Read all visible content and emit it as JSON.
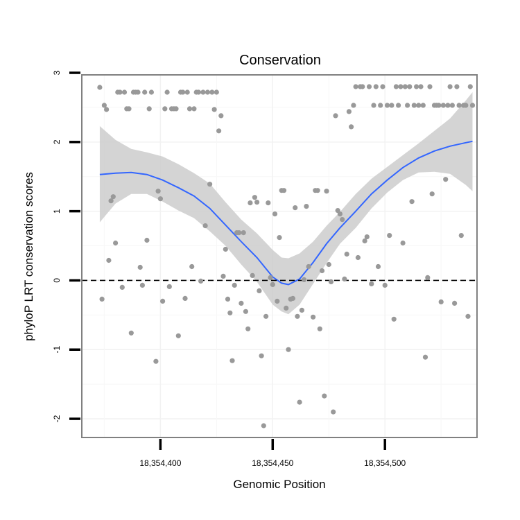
{
  "chart_data": {
    "type": "scatter",
    "title": "Conservation",
    "xlabel": "Genomic Position",
    "ylabel": "phyloP LRT conservation scores",
    "xlim": [
      18354365,
      18354541
    ],
    "ylim": [
      -2.27,
      2.97
    ],
    "x_ticks": [
      18354400,
      18354450,
      18354500
    ],
    "x_tick_labels": [
      "18,354,400",
      "18,354,450",
      "18,354,500"
    ],
    "y_ticks": [
      -2,
      -1,
      0,
      1,
      2,
      3
    ],
    "y_tick_labels": [
      "-2",
      "-1",
      "0",
      "1",
      "2",
      "3"
    ],
    "reference_line": {
      "y": 0,
      "style": "dashed"
    },
    "colors": {
      "points": "#999999",
      "smooth": "#3366ff",
      "ribbon": "#cccccc",
      "panel_border": "#808080",
      "grid": "#f2f2f2"
    },
    "points": [
      [
        18354373,
        2.79
      ],
      [
        18354374,
        -0.27
      ],
      [
        18354375,
        2.53
      ],
      [
        18354376,
        2.47
      ],
      [
        18354377,
        0.29
      ],
      [
        18354378,
        1.15
      ],
      [
        18354379,
        1.21
      ],
      [
        18354380,
        0.54
      ],
      [
        18354381,
        2.72
      ],
      [
        18354382,
        2.72
      ],
      [
        18354383,
        -0.1
      ],
      [
        18354384,
        2.72
      ],
      [
        18354385,
        2.48
      ],
      [
        18354386,
        2.48
      ],
      [
        18354387,
        -0.76
      ],
      [
        18354388,
        2.72
      ],
      [
        18354389,
        2.72
      ],
      [
        18354390,
        2.72
      ],
      [
        18354391,
        0.19
      ],
      [
        18354392,
        -0.07
      ],
      [
        18354393,
        2.72
      ],
      [
        18354394,
        0.58
      ],
      [
        18354395,
        2.48
      ],
      [
        18354396,
        2.72
      ],
      [
        18354398,
        -1.17
      ],
      [
        18354399,
        1.29
      ],
      [
        18354400,
        1.18
      ],
      [
        18354401,
        -0.3
      ],
      [
        18354402,
        2.48
      ],
      [
        18354403,
        2.72
      ],
      [
        18354404,
        -0.09
      ],
      [
        18354405,
        2.48
      ],
      [
        18354406,
        2.48
      ],
      [
        18354407,
        2.48
      ],
      [
        18354408,
        -0.8
      ],
      [
        18354409,
        2.72
      ],
      [
        18354410,
        2.72
      ],
      [
        18354411,
        -0.26
      ],
      [
        18354412,
        2.72
      ],
      [
        18354413,
        2.48
      ],
      [
        18354414,
        0.2
      ],
      [
        18354415,
        2.48
      ],
      [
        18354416,
        2.72
      ],
      [
        18354417,
        2.72
      ],
      [
        18354418,
        -0.01
      ],
      [
        18354419,
        2.72
      ],
      [
        18354420,
        0.79
      ],
      [
        18354421,
        2.72
      ],
      [
        18354422,
        1.39
      ],
      [
        18354423,
        2.72
      ],
      [
        18354424,
        2.47
      ],
      [
        18354425,
        2.72
      ],
      [
        18354426,
        2.16
      ],
      [
        18354427,
        2.38
      ],
      [
        18354428,
        0.06
      ],
      [
        18354429,
        0.45
      ],
      [
        18354430,
        -0.27
      ],
      [
        18354431,
        -0.47
      ],
      [
        18354432,
        -1.16
      ],
      [
        18354433,
        -0.07
      ],
      [
        18354434,
        0.69
      ],
      [
        18354435,
        0.69
      ],
      [
        18354436,
        -0.33
      ],
      [
        18354437,
        0.69
      ],
      [
        18354438,
        -0.45
      ],
      [
        18354439,
        -0.7
      ],
      [
        18354440,
        1.12
      ],
      [
        18354441,
        0.07
      ],
      [
        18354442,
        1.2
      ],
      [
        18354443,
        1.13
      ],
      [
        18354444,
        -0.15
      ],
      [
        18354445,
        -1.09
      ],
      [
        18354446,
        -2.1
      ],
      [
        18354447,
        -0.52
      ],
      [
        18354448,
        1.12
      ],
      [
        18354449,
        0.04
      ],
      [
        18354450,
        -0.06
      ],
      [
        18354451,
        0.96
      ],
      [
        18354452,
        -0.3
      ],
      [
        18354453,
        0.62
      ],
      [
        18354454,
        1.3
      ],
      [
        18354455,
        1.3
      ],
      [
        18354456,
        -0.4
      ],
      [
        18354457,
        -1.0
      ],
      [
        18354458,
        -0.27
      ],
      [
        18354459,
        -0.26
      ],
      [
        18354460,
        1.05
      ],
      [
        18354461,
        -0.52
      ],
      [
        18354462,
        -1.76
      ],
      [
        18354463,
        -0.43
      ],
      [
        18354464,
        0.01
      ],
      [
        18354465,
        1.07
      ],
      [
        18354466,
        0.2
      ],
      [
        18354468,
        -0.53
      ],
      [
        18354469,
        1.3
      ],
      [
        18354470,
        1.3
      ],
      [
        18354471,
        -0.7
      ],
      [
        18354472,
        0.14
      ],
      [
        18354473,
        -1.67
      ],
      [
        18354474,
        1.29
      ],
      [
        18354475,
        0.23
      ],
      [
        18354476,
        -0.02
      ],
      [
        18354477,
        -1.9
      ],
      [
        18354478,
        2.38
      ],
      [
        18354479,
        1.01
      ],
      [
        18354480,
        0.96
      ],
      [
        18354481,
        0.88
      ],
      [
        18354482,
        0.02
      ],
      [
        18354483,
        0.38
      ],
      [
        18354484,
        2.44
      ],
      [
        18354485,
        2.22
      ],
      [
        18354486,
        2.53
      ],
      [
        18354487,
        2.8
      ],
      [
        18354488,
        0.33
      ],
      [
        18354489,
        2.8
      ],
      [
        18354490,
        2.8
      ],
      [
        18354491,
        0.57
      ],
      [
        18354492,
        0.63
      ],
      [
        18354493,
        2.8
      ],
      [
        18354494,
        -0.05
      ],
      [
        18354495,
        2.53
      ],
      [
        18354496,
        2.8
      ],
      [
        18354497,
        0.2
      ],
      [
        18354498,
        2.53
      ],
      [
        18354499,
        2.8
      ],
      [
        18354500,
        -0.07
      ],
      [
        18354501,
        2.53
      ],
      [
        18354502,
        0.65
      ],
      [
        18354503,
        2.53
      ],
      [
        18354504,
        -0.56
      ],
      [
        18354505,
        2.8
      ],
      [
        18354506,
        2.53
      ],
      [
        18354507,
        2.8
      ],
      [
        18354508,
        0.54
      ],
      [
        18354509,
        2.8
      ],
      [
        18354510,
        2.53
      ],
      [
        18354511,
        2.8
      ],
      [
        18354512,
        1.14
      ],
      [
        18354513,
        2.53
      ],
      [
        18354514,
        2.8
      ],
      [
        18354515,
        2.53
      ],
      [
        18354516,
        2.8
      ],
      [
        18354517,
        2.53
      ],
      [
        18354518,
        -1.11
      ],
      [
        18354519,
        0.04
      ],
      [
        18354520,
        2.8
      ],
      [
        18354521,
        1.25
      ],
      [
        18354522,
        2.53
      ],
      [
        18354523,
        2.53
      ],
      [
        18354524,
        2.53
      ],
      [
        18354525,
        -0.31
      ],
      [
        18354526,
        2.53
      ],
      [
        18354527,
        1.46
      ],
      [
        18354528,
        2.53
      ],
      [
        18354529,
        2.8
      ],
      [
        18354530,
        2.53
      ],
      [
        18354531,
        -0.33
      ],
      [
        18354532,
        2.8
      ],
      [
        18354533,
        2.53
      ],
      [
        18354534,
        0.65
      ],
      [
        18354535,
        2.53
      ],
      [
        18354536,
        2.53
      ],
      [
        18354537,
        -0.52
      ],
      [
        18354538,
        2.8
      ],
      [
        18354539,
        2.53
      ]
    ],
    "smooth": {
      "method": "loess",
      "x": [
        18354373,
        18354380,
        18354387,
        18354394,
        18354401,
        18354408,
        18354415,
        18354422,
        18354429,
        18354436,
        18354443,
        18354450,
        18354454,
        18354457,
        18354462,
        18354468,
        18354474,
        18354480,
        18354487,
        18354494,
        18354501,
        18354508,
        18354515,
        18354522,
        18354529,
        18354536,
        18354539
      ],
      "y": [
        1.53,
        1.55,
        1.56,
        1.53,
        1.45,
        1.34,
        1.22,
        1.04,
        0.8,
        0.56,
        0.33,
        0.05,
        -0.04,
        -0.06,
        0.02,
        0.26,
        0.53,
        0.76,
        1.0,
        1.25,
        1.45,
        1.63,
        1.77,
        1.87,
        1.94,
        1.99,
        2.01
      ],
      "lower": [
        0.84,
        1.11,
        1.25,
        1.25,
        1.14,
        1.01,
        0.9,
        0.71,
        0.5,
        0.23,
        -0.02,
        -0.35,
        -0.45,
        -0.49,
        -0.35,
        -0.05,
        0.25,
        0.53,
        0.76,
        1.04,
        1.27,
        1.45,
        1.56,
        1.57,
        1.54,
        1.38,
        1.29
      ],
      "upper": [
        2.23,
        2.03,
        1.9,
        1.85,
        1.79,
        1.68,
        1.55,
        1.4,
        1.13,
        0.88,
        0.68,
        0.44,
        0.33,
        0.32,
        0.39,
        0.56,
        0.79,
        0.99,
        1.25,
        1.47,
        1.64,
        1.81,
        1.98,
        2.16,
        2.34,
        2.6,
        2.72
      ]
    }
  }
}
